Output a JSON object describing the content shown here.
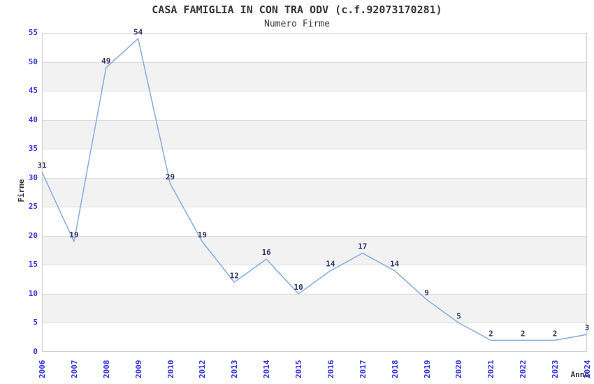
{
  "chart_data": {
    "type": "line",
    "title": "CASA FAMIGLIA IN CON TRA ODV (c.f.92073170281)",
    "subtitle": "Numero Firme",
    "xlabel": "Anno",
    "ylabel": "Firme",
    "categories": [
      "2006",
      "2007",
      "2008",
      "2009",
      "2010",
      "2012",
      "2013",
      "2014",
      "2015",
      "2016",
      "2017",
      "2018",
      "2019",
      "2020",
      "2021",
      "2022",
      "2023",
      "2024"
    ],
    "values": [
      31,
      19,
      49,
      54,
      29,
      19,
      12,
      16,
      10,
      14,
      17,
      14,
      9,
      5,
      2,
      2,
      2,
      3
    ],
    "ylim": [
      0,
      55
    ],
    "yticks": [
      0,
      5,
      10,
      15,
      20,
      25,
      30,
      35,
      40,
      45,
      50,
      55
    ],
    "grid": "horizontal gridlines every 5 units with alternating gray bands",
    "legend": "none",
    "data_labels": true,
    "marker": "none",
    "colors": {
      "line": "#85ACDE",
      "tick_label": "#3333DD",
      "data_label": "#333366",
      "band": "#F2F2F2",
      "gridline": "#DCDCDC",
      "plot_border": "#CFCFCF",
      "title": "#363636",
      "axis_title": "#333333",
      "background": "#FFFFFF"
    }
  }
}
